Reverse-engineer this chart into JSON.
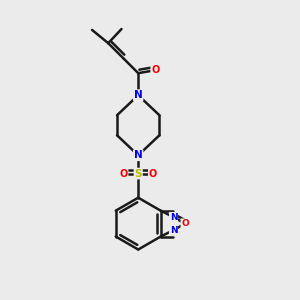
{
  "background_color": "#ebebeb",
  "bond_color": "#1a1a1a",
  "bond_width": 1.8,
  "atom_colors": {
    "N": "#0000ee",
    "O": "#ee0000",
    "S": "#bbbb00",
    "C": "#1a1a1a"
  },
  "figsize": [
    3.0,
    3.0
  ],
  "dpi": 100
}
